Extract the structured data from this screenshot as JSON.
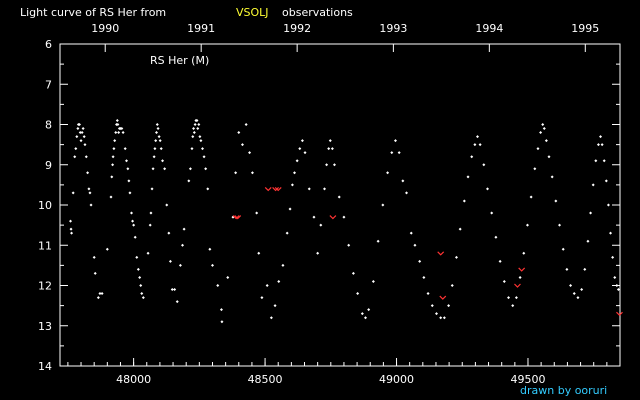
{
  "chart_data": {
    "type": "scatter",
    "title_parts": [
      "Light curve of RS Her from",
      "VSOLJ",
      "observations"
    ],
    "star_label": "RS Her (M)",
    "credit": "drawn by ooruri",
    "xlim": [
      47720,
      49850
    ],
    "ylim": [
      14,
      6
    ],
    "y_inverted": true,
    "xticks": [
      48000,
      48500,
      49000,
      49500
    ],
    "xtick_labels": [
      "48000",
      "48500",
      "49000",
      "49500"
    ],
    "yticks": [
      6,
      7,
      8,
      9,
      10,
      11,
      12,
      13,
      14
    ],
    "ytick_labels": [
      "6",
      "7",
      "8",
      "9",
      "10",
      "11",
      "12",
      "13",
      "14"
    ],
    "top_axis": {
      "ticks": [
        47892,
        48257,
        48622,
        48988,
        49353,
        49718
      ],
      "labels": [
        "1990",
        "1991",
        "1992",
        "1993",
        "1994",
        "1995"
      ]
    },
    "colors": {
      "visual": "#ffffff",
      "faint_limit": "#ff3333",
      "accent": "#ffff33",
      "credit": "#33ccff"
    },
    "series": [
      {
        "kind": "visual",
        "points": [
          [
            47760,
            10.4
          ],
          [
            47762,
            10.6
          ],
          [
            47764,
            10.7
          ],
          [
            47770,
            9.7
          ],
          [
            47776,
            8.8
          ],
          [
            47780,
            8.6
          ],
          [
            47784,
            8.3
          ],
          [
            47788,
            8.1
          ],
          [
            47790,
            8.0
          ],
          [
            47794,
            8.0
          ],
          [
            47797,
            8.2
          ],
          [
            47800,
            8.4
          ],
          [
            47804,
            8.2
          ],
          [
            47808,
            8.1
          ],
          [
            47812,
            8.3
          ],
          [
            47815,
            8.5
          ],
          [
            47820,
            8.8
          ],
          [
            47825,
            9.2
          ],
          [
            47830,
            9.6
          ],
          [
            47834,
            9.7
          ],
          [
            47838,
            10.0
          ],
          [
            47850,
            11.3
          ],
          [
            47854,
            11.7
          ],
          [
            47866,
            12.3
          ],
          [
            47872,
            12.2
          ],
          [
            47880,
            12.2
          ],
          [
            47900,
            11.1
          ],
          [
            47914,
            9.8
          ],
          [
            47917,
            9.3
          ],
          [
            47920,
            9.0
          ],
          [
            47922,
            8.8
          ],
          [
            47925,
            8.6
          ],
          [
            47928,
            8.4
          ],
          [
            47932,
            8.2
          ],
          [
            47935,
            8.0
          ],
          [
            47938,
            7.9
          ],
          [
            47940,
            8.0
          ],
          [
            47943,
            8.2
          ],
          [
            47946,
            8.1
          ],
          [
            47950,
            8.1
          ],
          [
            47955,
            8.1
          ],
          [
            47960,
            8.2
          ],
          [
            47968,
            8.6
          ],
          [
            47973,
            8.9
          ],
          [
            47978,
            9.1
          ],
          [
            47982,
            9.4
          ],
          [
            47986,
            9.7
          ],
          [
            47992,
            10.2
          ],
          [
            47996,
            10.4
          ],
          [
            48000,
            10.5
          ],
          [
            48006,
            10.8
          ],
          [
            48012,
            11.3
          ],
          [
            48018,
            11.6
          ],
          [
            48023,
            11.8
          ],
          [
            48027,
            12.0
          ],
          [
            48031,
            12.2
          ],
          [
            48037,
            12.3
          ],
          [
            48055,
            11.2
          ],
          [
            48063,
            10.5
          ],
          [
            48066,
            10.2
          ],
          [
            48070,
            9.6
          ],
          [
            48074,
            9.1
          ],
          [
            48078,
            8.8
          ],
          [
            48081,
            8.6
          ],
          [
            48084,
            8.4
          ],
          [
            48087,
            8.2
          ],
          [
            48090,
            8.0
          ],
          [
            48093,
            8.1
          ],
          [
            48097,
            8.3
          ],
          [
            48101,
            8.4
          ],
          [
            48105,
            8.6
          ],
          [
            48110,
            8.9
          ],
          [
            48118,
            9.1
          ],
          [
            48126,
            10.0
          ],
          [
            48134,
            10.7
          ],
          [
            48140,
            11.4
          ],
          [
            48147,
            12.1
          ],
          [
            48156,
            12.1
          ],
          [
            48166,
            12.4
          ],
          [
            48178,
            11.5
          ],
          [
            48186,
            11.0
          ],
          [
            48192,
            10.6
          ],
          [
            48210,
            9.4
          ],
          [
            48216,
            9.1
          ],
          [
            48222,
            8.6
          ],
          [
            48225,
            8.3
          ],
          [
            48228,
            8.1
          ],
          [
            48231,
            8.2
          ],
          [
            48234,
            8.0
          ],
          [
            48237,
            7.9
          ],
          [
            48241,
            7.9
          ],
          [
            48244,
            8.1
          ],
          [
            48248,
            8.0
          ],
          [
            48252,
            8.3
          ],
          [
            48256,
            8.4
          ],
          [
            48262,
            8.6
          ],
          [
            48268,
            8.8
          ],
          [
            48274,
            9.1
          ],
          [
            48282,
            9.6
          ],
          [
            48290,
            11.1
          ],
          [
            48300,
            11.5
          ],
          [
            48320,
            12.0
          ],
          [
            48334,
            12.6
          ],
          [
            48336,
            12.9
          ],
          [
            48358,
            11.8
          ],
          [
            48378,
            10.3
          ],
          [
            48388,
            9.2
          ],
          [
            48400,
            8.2
          ],
          [
            48414,
            8.5
          ],
          [
            48428,
            8.0
          ],
          [
            48441,
            8.7
          ],
          [
            48452,
            9.2
          ],
          [
            48468,
            10.2
          ],
          [
            48476,
            11.2
          ],
          [
            48488,
            12.3
          ],
          [
            48508,
            12.0
          ],
          [
            48524,
            12.8
          ],
          [
            48538,
            12.5
          ],
          [
            48552,
            11.9
          ],
          [
            48568,
            11.5
          ],
          [
            48584,
            10.7
          ],
          [
            48595,
            10.1
          ],
          [
            48604,
            9.5
          ],
          [
            48612,
            9.2
          ],
          [
            48622,
            8.9
          ],
          [
            48632,
            8.6
          ],
          [
            48642,
            8.4
          ],
          [
            48652,
            8.7
          ],
          [
            48668,
            9.6
          ],
          [
            48686,
            10.3
          ],
          [
            48700,
            11.2
          ],
          [
            48712,
            10.5
          ],
          [
            48726,
            9.6
          ],
          [
            48734,
            9.0
          ],
          [
            48742,
            8.6
          ],
          [
            48748,
            8.4
          ],
          [
            48756,
            8.6
          ],
          [
            48764,
            9.0
          ],
          [
            48782,
            9.8
          ],
          [
            48800,
            10.3
          ],
          [
            48818,
            11.0
          ],
          [
            48836,
            11.7
          ],
          [
            48852,
            12.2
          ],
          [
            48870,
            12.7
          ],
          [
            48882,
            12.8
          ],
          [
            48894,
            12.6
          ],
          [
            48912,
            11.9
          ],
          [
            48930,
            10.9
          ],
          [
            48948,
            10.0
          ],
          [
            48966,
            9.2
          ],
          [
            48982,
            8.7
          ],
          [
            48996,
            8.4
          ],
          [
            49010,
            8.7
          ],
          [
            49024,
            9.4
          ],
          [
            49038,
            9.7
          ],
          [
            49056,
            10.7
          ],
          [
            49070,
            11.0
          ],
          [
            49088,
            11.4
          ],
          [
            49104,
            11.8
          ],
          [
            49120,
            12.2
          ],
          [
            49136,
            12.5
          ],
          [
            49152,
            12.7
          ],
          [
            49168,
            12.8
          ],
          [
            49182,
            12.8
          ],
          [
            49198,
            12.5
          ],
          [
            49212,
            12.0
          ],
          [
            49228,
            11.3
          ],
          [
            49242,
            10.6
          ],
          [
            49258,
            9.9
          ],
          [
            49272,
            9.3
          ],
          [
            49286,
            8.8
          ],
          [
            49298,
            8.5
          ],
          [
            49308,
            8.3
          ],
          [
            49318,
            8.5
          ],
          [
            49332,
            9.0
          ],
          [
            49346,
            9.6
          ],
          [
            49362,
            10.2
          ],
          [
            49378,
            10.8
          ],
          [
            49394,
            11.4
          ],
          [
            49410,
            11.9
          ],
          [
            49426,
            12.3
          ],
          [
            49442,
            12.5
          ],
          [
            49456,
            12.3
          ],
          [
            49470,
            11.8
          ],
          [
            49484,
            11.2
          ],
          [
            49498,
            10.5
          ],
          [
            49512,
            9.8
          ],
          [
            49526,
            9.1
          ],
          [
            49538,
            8.6
          ],
          [
            49548,
            8.2
          ],
          [
            49556,
            8.0
          ],
          [
            49562,
            8.1
          ],
          [
            49570,
            8.4
          ],
          [
            49580,
            8.8
          ],
          [
            49592,
            9.3
          ],
          [
            49606,
            9.9
          ],
          [
            49620,
            10.5
          ],
          [
            49634,
            11.1
          ],
          [
            49648,
            11.6
          ],
          [
            49662,
            12.0
          ],
          [
            49676,
            12.2
          ],
          [
            49690,
            12.3
          ],
          [
            49704,
            12.1
          ],
          [
            49716,
            11.6
          ],
          [
            49728,
            10.9
          ],
          [
            49738,
            10.2
          ],
          [
            49748,
            9.5
          ],
          [
            49758,
            8.9
          ],
          [
            49768,
            8.5
          ],
          [
            49776,
            8.3
          ],
          [
            49782,
            8.5
          ],
          [
            49790,
            8.9
          ],
          [
            49798,
            9.4
          ],
          [
            49806,
            10.0
          ],
          [
            49814,
            10.7
          ],
          [
            49822,
            11.3
          ],
          [
            49830,
            11.8
          ],
          [
            49838,
            12.0
          ],
          [
            49844,
            12.1
          ]
        ]
      },
      {
        "kind": "faint_limit",
        "points": [
          [
            48390,
            10.3
          ],
          [
            48396,
            10.3
          ],
          [
            48512,
            9.6
          ],
          [
            48540,
            9.6
          ],
          [
            48550,
            9.6
          ],
          [
            48758,
            10.3
          ],
          [
            49168,
            11.2
          ],
          [
            49176,
            12.3
          ],
          [
            49460,
            12.0
          ],
          [
            49476,
            11.6
          ],
          [
            49848,
            12.7
          ]
        ]
      }
    ]
  }
}
